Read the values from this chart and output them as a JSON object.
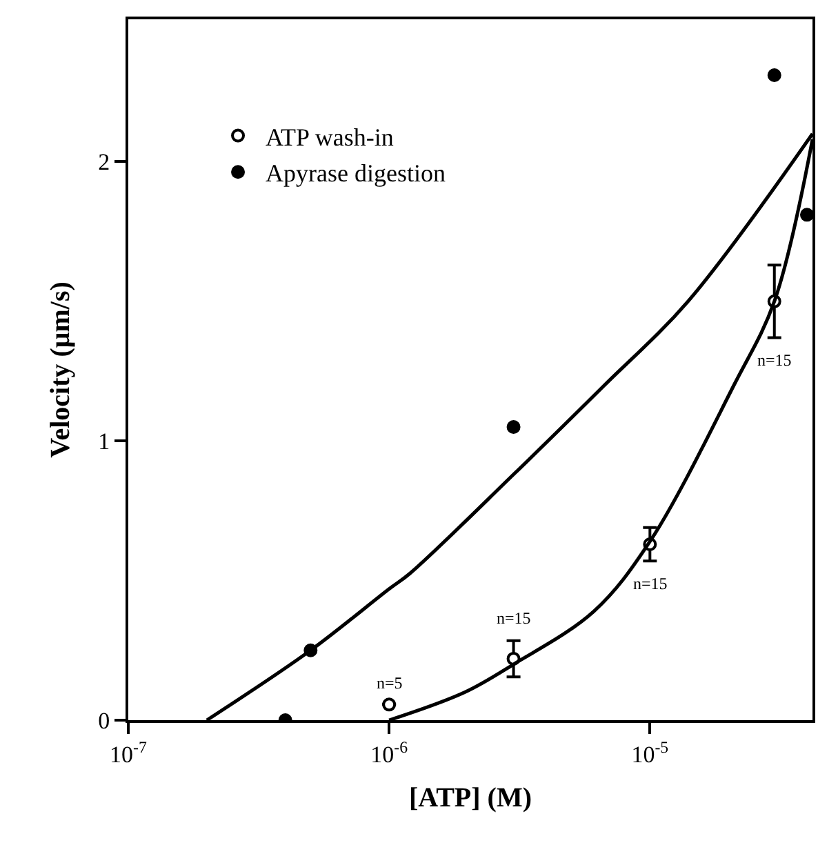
{
  "chart_data": {
    "type": "scatter",
    "xlabel": "[ATP] (M)",
    "ylabel": "Velocity (μm/s)",
    "log": "x",
    "xlim": [
      1e-07,
      4.2e-05
    ],
    "ylim": [
      0,
      2.51
    ],
    "xticks": [
      {
        "value": 1e-07,
        "label": "10$^{-7}$"
      },
      {
        "value": 1e-06,
        "label": "10$^{-6}$"
      },
      {
        "value": 1e-05,
        "label": "10$^{-5}$"
      }
    ],
    "yticks": [
      0,
      1,
      2
    ],
    "legend": "top left",
    "marker": "circle",
    "series": [
      {
        "name": "ATP wash-in",
        "color": "#ffffff",
        "x": [
          1e-06,
          3e-06,
          1e-05,
          3e-05
        ],
        "values": [
          0.056,
          0.22,
          0.63,
          1.5
        ],
        "errors": [
          null,
          0.065,
          0.06,
          0.13
        ]
      },
      {
        "name": "Apyrase digestion",
        "color": "#000000",
        "x": [
          4e-07,
          5e-07,
          3e-06,
          3e-05,
          4e-05
        ],
        "values": [
          0,
          0.25,
          1.05,
          2.31,
          1.81
        ]
      },
      {
        "type": "line",
        "color": "#000000",
        "marker": "none",
        "x": [
          2e-07,
          5e-07,
          1e-06,
          1.2e-06,
          3e-06,
          6.7e-06,
          1.4e-05,
          4.2e-05
        ],
        "values": [
          0,
          0.25,
          0.47,
          0.525,
          0.88,
          1.2,
          1.5,
          2.1
        ]
      },
      {
        "type": "line",
        "color": "#000000",
        "marker": "none",
        "x": [
          1e-06,
          1.95e-06,
          3e-06,
          6.1e-06,
          1e-05,
          2.1e-05,
          3e-05,
          4.2e-05
        ],
        "values": [
          0,
          0.1,
          0.2,
          0.39,
          0.64,
          1.2,
          1.5,
          2.08
        ]
      }
    ],
    "annotations": [
      {
        "text": "n=5",
        "x": 1e-06,
        "y": 0.056
      },
      {
        "text": "n=15",
        "x": 3e-06,
        "y": 0.22
      },
      {
        "text": "n=15",
        "x": 1e-05,
        "y": 0.63
      },
      {
        "text": "n=15",
        "x": 3e-05,
        "y": 1.5
      }
    ]
  }
}
